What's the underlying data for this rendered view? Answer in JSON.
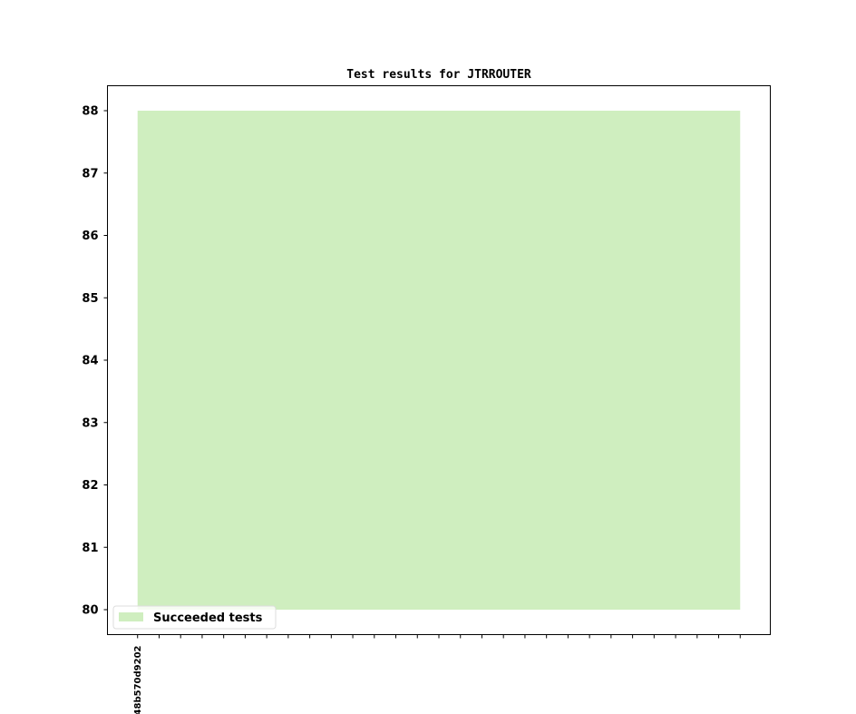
{
  "chart_data": {
    "type": "area",
    "title": "Test results for JTRROUTER",
    "xlabel": "",
    "ylabel": "",
    "categories": [
      "48b570d9202",
      "",
      "",
      "",
      "",
      "",
      "",
      "",
      "",
      "",
      "",
      "",
      "",
      "",
      "",
      "",
      "",
      "",
      "",
      "",
      "",
      "",
      "",
      "",
      "",
      "",
      "",
      "",
      ""
    ],
    "series": [
      {
        "name": "Succeeded tests",
        "values": [
          88,
          88,
          88,
          88,
          88,
          88,
          88,
          88,
          88,
          88,
          88,
          88,
          88,
          88,
          88,
          88,
          88,
          88,
          88,
          88,
          88,
          88,
          88,
          88,
          88,
          88,
          88,
          88,
          88
        ],
        "baseline": 80,
        "color": "#cfeebf"
      }
    ],
    "yticks": [
      80,
      81,
      82,
      83,
      84,
      85,
      86,
      87,
      88
    ],
    "ylim": [
      79.6,
      88.4
    ],
    "xlim": [
      -1.4,
      29.4
    ],
    "grid": false,
    "legend_placement": "lower-left"
  }
}
